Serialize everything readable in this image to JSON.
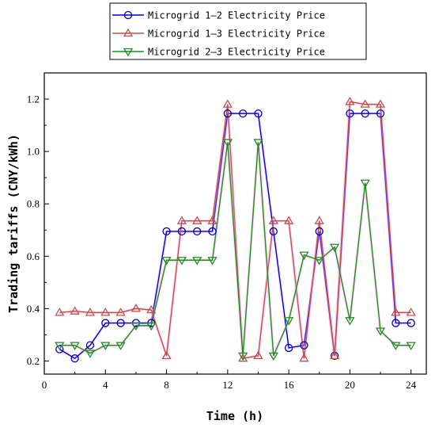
{
  "chart_data": {
    "type": "line",
    "title": "",
    "xlabel": "Time (h)",
    "ylabel": "Trading tariffs (CNY/kWh)",
    "xlim": [
      0,
      25
    ],
    "ylim": [
      0.15,
      1.3
    ],
    "xticks": [
      0,
      4,
      8,
      12,
      16,
      20,
      24
    ],
    "yticks": [
      0.2,
      0.4,
      0.6,
      0.8,
      1.0,
      1.2
    ],
    "xtick_labels": [
      "0",
      "4",
      "8",
      "12",
      "16",
      "20",
      "24"
    ],
    "ytick_labels": [
      "0.2",
      "0.4",
      "0.6",
      "0.8",
      "1.0",
      "1.2"
    ],
    "grid": false,
    "legend_position": "top-center, above plot",
    "x": [
      1,
      2,
      3,
      4,
      5,
      6,
      7,
      8,
      9,
      10,
      11,
      12,
      13,
      14,
      15,
      16,
      17,
      18,
      19,
      20,
      21,
      22,
      23,
      24
    ],
    "series": [
      {
        "name": "Microgrid 1—2 Electricity Price",
        "color": "#0000cc",
        "marker": "circle",
        "values": [
          0.245,
          0.21,
          0.26,
          0.345,
          0.345,
          0.345,
          0.345,
          0.695,
          0.695,
          0.695,
          0.695,
          1.145,
          1.145,
          1.145,
          0.695,
          0.25,
          0.26,
          0.695,
          0.22,
          1.145,
          1.145,
          1.145,
          0.345,
          0.345
        ]
      },
      {
        "name": "Microgrid 1—3 Electricity Price",
        "color": "#c0504d",
        "marker": "triangle-up",
        "values": [
          0.385,
          0.39,
          0.385,
          0.385,
          0.385,
          0.4,
          0.395,
          0.22,
          0.735,
          0.735,
          0.735,
          1.18,
          0.21,
          0.22,
          0.735,
          0.735,
          0.21,
          0.735,
          0.22,
          1.19,
          1.18,
          1.18,
          0.385,
          0.385
        ]
      },
      {
        "name": "Microgrid 2—3 Electricity Price",
        "color": "#228b22",
        "marker": "triangle-down",
        "values": [
          0.26,
          0.26,
          0.23,
          0.26,
          0.26,
          0.335,
          0.335,
          0.585,
          0.585,
          0.585,
          0.585,
          1.035,
          0.22,
          1.035,
          0.22,
          0.355,
          0.605,
          0.585,
          0.635,
          0.355,
          0.88,
          0.315,
          0.26,
          0.26
        ]
      }
    ]
  }
}
